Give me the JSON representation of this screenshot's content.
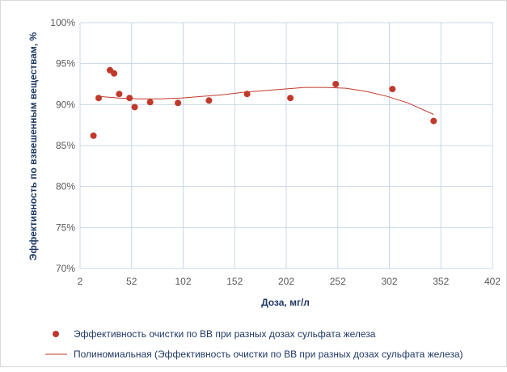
{
  "chart_data": {
    "type": "scatter",
    "xlabel": "Доза, мг/л",
    "ylabel": "Эффективность по взвешенным веществам, %",
    "xlim": [
      2,
      402
    ],
    "ylim": [
      0.7,
      1.0
    ],
    "x_ticks": [
      "2",
      "52",
      "102",
      "152",
      "202",
      "252",
      "302",
      "352",
      "402"
    ],
    "y_ticks": [
      "70%",
      "75%",
      "80%",
      "85%",
      "90%",
      "95%",
      "100%"
    ],
    "grid": "vertical and horizontal",
    "legend_position": "bottom",
    "colors": {
      "points": "#c0392b",
      "trend": "#c0392b",
      "grid": "#c9d7ea",
      "axis_text": "#595959",
      "title_text": "#1f3864"
    },
    "series": [
      {
        "name": "Эффективность очистки по ВВ при разных дозах сульфата железа",
        "kind": "points",
        "x": [
          15,
          20,
          31,
          35,
          40,
          50,
          55,
          70,
          97,
          127,
          164,
          206,
          250,
          305,
          345
        ],
        "y": [
          0.862,
          0.908,
          0.942,
          0.938,
          0.913,
          0.908,
          0.897,
          0.903,
          0.902,
          0.905,
          0.913,
          0.908,
          0.925,
          0.919,
          0.88
        ]
      },
      {
        "name": "Полиномиальная (Эффективность очистки по ВВ при разных дозах сульфата железа)",
        "kind": "trendline",
        "x": [
          20,
          40,
          60,
          80,
          100,
          120,
          140,
          160,
          180,
          200,
          220,
          240,
          260,
          280,
          300,
          320,
          345
        ],
        "y": [
          0.91,
          0.908,
          0.907,
          0.907,
          0.908,
          0.91,
          0.912,
          0.915,
          0.917,
          0.919,
          0.921,
          0.921,
          0.92,
          0.916,
          0.91,
          0.902,
          0.888
        ]
      }
    ]
  }
}
